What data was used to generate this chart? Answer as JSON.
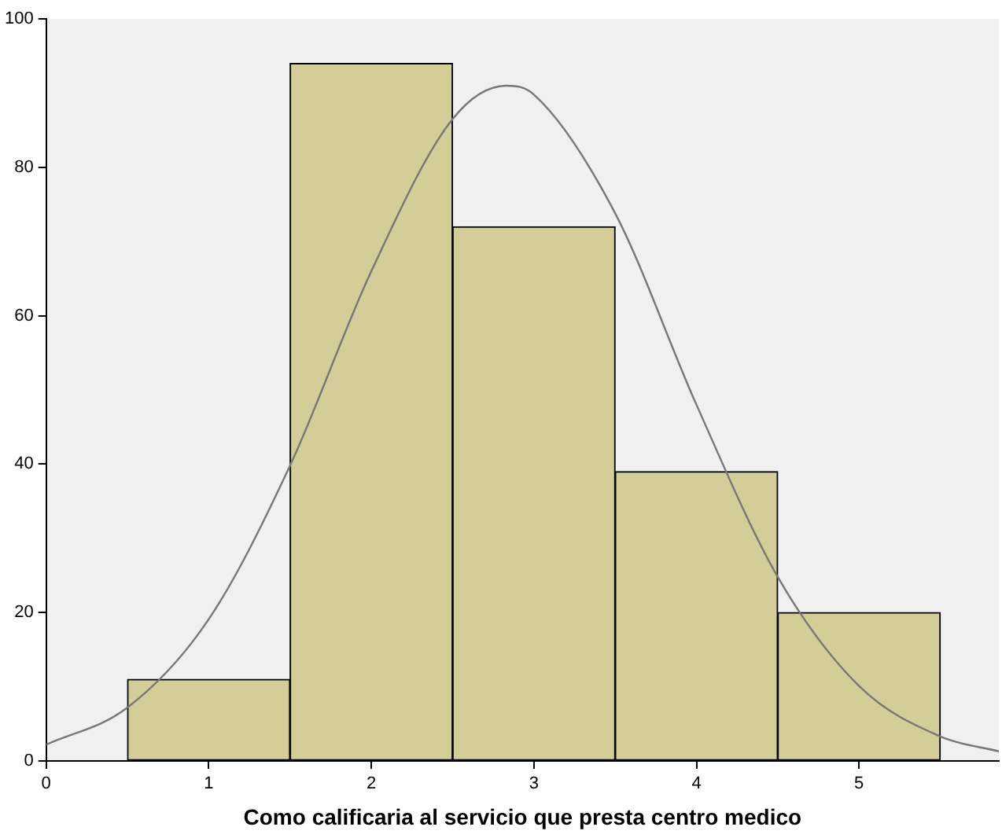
{
  "chart_data": {
    "type": "histogram",
    "xlabel": "Como calificaria al servicio que presta centro medico",
    "bins": [
      0.5,
      1.5,
      2.5,
      3.5,
      4.5,
      5.5
    ],
    "values": [
      11,
      94,
      72,
      39,
      20
    ],
    "color": "#d3ce97",
    "series": [
      {
        "type": "line",
        "color": "#777777",
        "x": [
          0,
          0.5,
          1,
          1.5,
          2,
          2.5,
          2.83,
          3,
          3.5,
          4,
          4.5,
          5,
          5.5,
          5.86
        ],
        "values": [
          2.2,
          7.2,
          19.1,
          39.8,
          66,
          86.5,
          91,
          89.8,
          73.8,
          48,
          24.8,
          10.1,
          3.3,
          1.3
        ]
      }
    ],
    "xlim": [
      0,
      5.86
    ],
    "xticks": [
      0,
      1,
      2,
      3,
      4,
      5
    ],
    "ylim": [
      0,
      100
    ],
    "yticks": [
      0,
      20,
      40,
      60,
      80,
      100
    ],
    "grid": false,
    "legend": false,
    "marker": "none"
  }
}
